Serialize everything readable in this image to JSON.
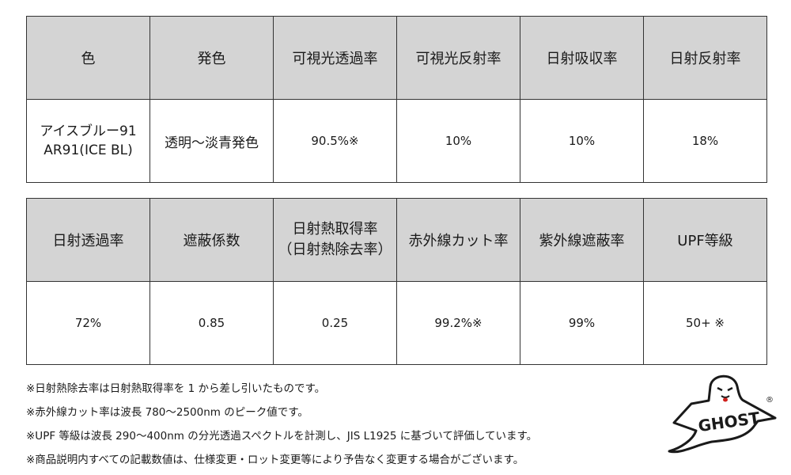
{
  "table1": {
    "headers": [
      "色",
      "発色",
      "可視光透過率",
      "可視光反射率",
      "日射吸収率",
      "日射反射率"
    ],
    "row": [
      "アイスブルー91\nAR91(ICE BL)",
      "透明～淡青発色",
      "90.5%※",
      "10%",
      "10%",
      "18%"
    ]
  },
  "table2": {
    "headers": [
      "日射透過率",
      "遮蔽係数",
      "日射熱取得率\n（日射熱除去率）",
      "赤外線カット率",
      "紫外線遮蔽率",
      "UPF等級"
    ],
    "row": [
      "72%",
      "0.85",
      "0.25",
      "99.2%※",
      "99%",
      "50+ ※"
    ]
  },
  "notes": [
    "※日射熱除去率は日射熱取得率を 1 から差し引いたものです。",
    "※赤外線カット率は波長 780～2500nm のピーク値です。",
    "※UPF 等級は波長 290～400nm の分光透過スペクトルを計測し、JIS L1925 に基づいて評価しています。",
    "※商品説明内すべての記載数値は、仕様変更・ロット変更等により予告なく変更する場合がございます。"
  ],
  "logo": {
    "text": "GHOST",
    "mark": "®"
  },
  "colors": {
    "header_bg": "#d4d4d4",
    "border": "#333333"
  }
}
